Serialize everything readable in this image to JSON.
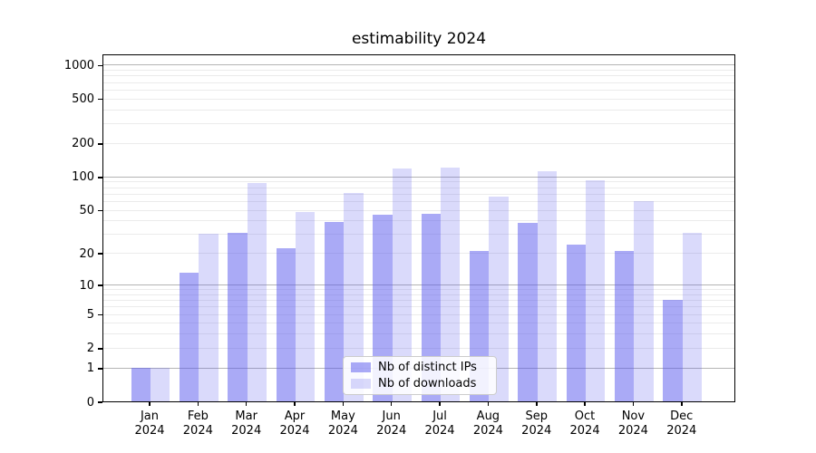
{
  "chart_data": {
    "type": "bar",
    "title": "estimability 2024",
    "categories": [
      "Jan",
      "Feb",
      "Mar",
      "Apr",
      "May",
      "Jun",
      "Jul",
      "Aug",
      "Sep",
      "Oct",
      "Nov",
      "Dec"
    ],
    "xtick_year": "2024",
    "series": [
      {
        "name": "Nb of distinct IPs",
        "color": "#5555ee",
        "alpha": 0.5,
        "rendered_color": "#aaaaf6",
        "values": [
          1,
          13,
          31,
          22,
          39,
          45,
          46,
          21,
          38,
          24,
          21,
          7
        ]
      },
      {
        "name": "Nb of downloads",
        "color": "#5555ee",
        "alpha": 0.22,
        "rendered_color": "#d9d9f8",
        "values": [
          1,
          30,
          87,
          48,
          71,
          118,
          120,
          66,
          111,
          92,
          60,
          31
        ]
      }
    ],
    "yscale": "log1p",
    "ylim": [
      0,
      1259
    ],
    "yticks": [
      0,
      1,
      2,
      5,
      10,
      20,
      50,
      100,
      200,
      500,
      1000
    ],
    "ytick_labels": [
      "0",
      "1",
      "2",
      "5",
      "10",
      "20",
      "50",
      "100",
      "200",
      "500",
      "1000"
    ],
    "grid": "on",
    "grid_major_at": [
      1,
      10,
      100,
      1000
    ],
    "legend_position": "lower center",
    "axis_color": "#000000",
    "grid_major_color": "#b4b4b4",
    "grid_minor_color": "#ebebeb"
  }
}
